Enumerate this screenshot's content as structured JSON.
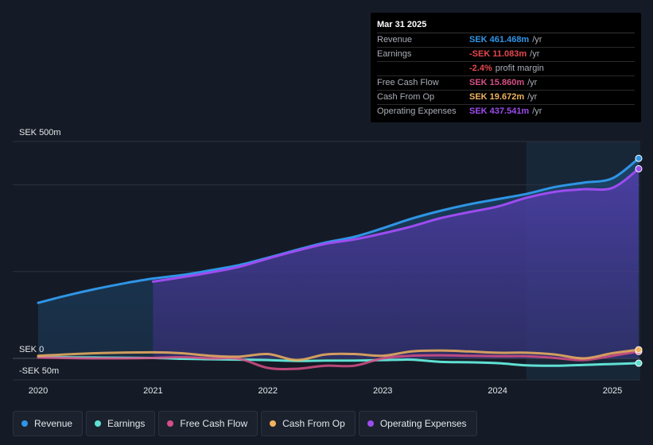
{
  "tooltip": {
    "date": "Mar 31 2025",
    "rows": [
      {
        "label": "Revenue",
        "value": "SEK 461.468m",
        "unit": "/yr",
        "color": "#2f95e6"
      },
      {
        "label": "Earnings",
        "value": "-SEK 11.083m",
        "unit": "/yr",
        "color": "#e5484d"
      },
      {
        "label": "",
        "value": "-2.4%",
        "unit": "profit margin",
        "color": "#e5484d"
      },
      {
        "label": "Free Cash Flow",
        "value": "SEK 15.860m",
        "unit": "/yr",
        "color": "#d64f86"
      },
      {
        "label": "Cash From Op",
        "value": "SEK 19.672m",
        "unit": "/yr",
        "color": "#f0b25f"
      },
      {
        "label": "Operating Expenses",
        "value": "SEK 437.541m",
        "unit": "/yr",
        "color": "#9d4cf0"
      }
    ]
  },
  "legend": [
    {
      "label": "Revenue",
      "color": "#2f95e6"
    },
    {
      "label": "Earnings",
      "color": "#5fe0d3"
    },
    {
      "label": "Free Cash Flow",
      "color": "#d64f86"
    },
    {
      "label": "Cash From Op",
      "color": "#f0b25f"
    },
    {
      "label": "Operating Expenses",
      "color": "#9d4cf0"
    }
  ],
  "chart_data": {
    "type": "line",
    "title": "",
    "xlabel": "",
    "ylabel": "",
    "ylim": [
      -50,
      500
    ],
    "y_tick_labels": [
      "SEK 500m",
      "SEK 0",
      "-SEK 50m"
    ],
    "x_tick_labels": [
      "2020",
      "2021",
      "2022",
      "2023",
      "2024",
      "2025"
    ],
    "x_ticks": [
      2020,
      2021,
      2022,
      2023,
      2024,
      2025
    ],
    "highlight_start": 2024.25,
    "series": [
      {
        "name": "Revenue",
        "color": "#2f95e6",
        "fill": true,
        "x": [
          2020.0,
          2020.25,
          2020.5,
          2020.75,
          2021.0,
          2021.25,
          2021.5,
          2021.75,
          2022.0,
          2022.25,
          2022.5,
          2022.75,
          2023.0,
          2023.25,
          2023.5,
          2023.75,
          2024.0,
          2024.25,
          2024.5,
          2024.75,
          2025.0,
          2025.25
        ],
        "values": [
          128,
          145,
          160,
          173,
          184,
          192,
          203,
          215,
          232,
          250,
          267,
          280,
          300,
          322,
          340,
          355,
          367,
          379,
          395,
          405,
          415,
          461
        ]
      },
      {
        "name": "Operating Expenses",
        "color": "#9d4cf0",
        "fill": true,
        "x": [
          2021.0,
          2021.25,
          2021.5,
          2021.75,
          2022.0,
          2022.25,
          2022.5,
          2022.75,
          2023.0,
          2023.25,
          2023.5,
          2023.75,
          2024.0,
          2024.25,
          2024.5,
          2024.75,
          2025.0,
          2025.25
        ],
        "values": [
          177,
          187,
          198,
          211,
          230,
          248,
          264,
          274,
          288,
          304,
          323,
          337,
          350,
          370,
          384,
          390,
          393,
          437
        ]
      },
      {
        "name": "Earnings",
        "color": "#5fe0d3",
        "fill": false,
        "x": [
          2020.0,
          2020.5,
          2021.0,
          2021.25,
          2021.5,
          2021.75,
          2022.0,
          2022.25,
          2022.5,
          2022.75,
          2023.0,
          2023.25,
          2023.5,
          2023.75,
          2024.0,
          2024.25,
          2024.5,
          2024.75,
          2025.0,
          2025.25
        ],
        "values": [
          3,
          2,
          1,
          -1,
          -2,
          -3,
          -4,
          -6,
          -5,
          -5,
          -4,
          -3,
          -8,
          -9,
          -11,
          -16,
          -17,
          -15,
          -13,
          -11
        ]
      },
      {
        "name": "Free Cash Flow",
        "color": "#d64f86",
        "fill": false,
        "x": [
          2020.0,
          2020.5,
          2021.0,
          2021.25,
          2021.5,
          2021.75,
          2022.0,
          2022.25,
          2022.5,
          2022.75,
          2023.0,
          2023.25,
          2023.5,
          2023.75,
          2024.0,
          2024.25,
          2024.5,
          2024.75,
          2025.0,
          2025.25
        ],
        "values": [
          2,
          0,
          1,
          3,
          0,
          -1,
          -22,
          -24,
          -17,
          -17,
          0,
          6,
          7,
          6,
          5,
          5,
          1,
          -4,
          6,
          16
        ]
      },
      {
        "name": "Cash From Op",
        "color": "#f0b25f",
        "fill": false,
        "x": [
          2020.0,
          2020.5,
          2021.0,
          2021.25,
          2021.5,
          2021.75,
          2022.0,
          2022.25,
          2022.5,
          2022.75,
          2023.0,
          2023.25,
          2023.5,
          2023.75,
          2024.0,
          2024.25,
          2024.5,
          2024.75,
          2025.0,
          2025.25
        ],
        "values": [
          6,
          12,
          14,
          12,
          6,
          4,
          10,
          -4,
          9,
          10,
          6,
          16,
          18,
          16,
          13,
          13,
          9,
          0,
          12,
          20
        ]
      }
    ]
  }
}
